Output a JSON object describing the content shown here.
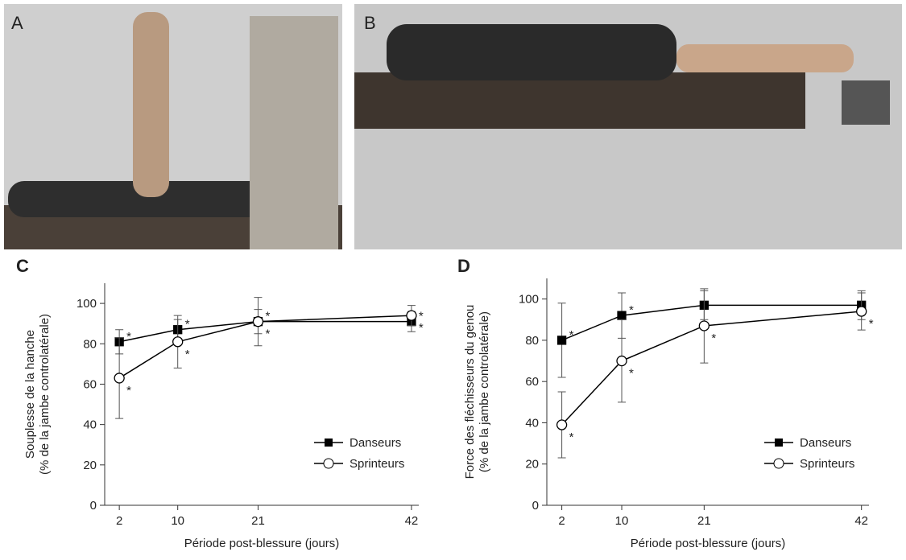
{
  "panel_labels": [
    "A",
    "B",
    "C",
    "D"
  ],
  "chart_data": [
    {
      "type": "line",
      "ylabel": [
        "Souplesse de la hanche",
        "(% de la jambe controlatérale)"
      ],
      "xlabel": "Période post-blessure (jours)",
      "x": [
        2,
        10,
        21,
        42
      ],
      "xlim": [
        0,
        43
      ],
      "xticks": [
        2,
        10,
        21,
        42
      ],
      "ylim": [
        0,
        110
      ],
      "yticks": [
        0,
        20,
        40,
        60,
        80,
        100
      ],
      "legend": "lower right",
      "series": [
        {
          "name": "Danseurs",
          "color": "#000000",
          "marker": "square",
          "values": [
            81,
            87,
            91,
            91
          ],
          "errors": [
            6,
            5,
            6,
            5
          ],
          "point_labels": [
            "*",
            "*",
            "*",
            "*"
          ]
        },
        {
          "name": "Sprinteurs",
          "color": "#000000",
          "marker": "circle",
          "values": [
            63,
            81,
            91,
            94
          ],
          "errors": [
            20,
            13,
            12,
            5
          ],
          "point_labels": [
            "*",
            "*",
            "*",
            "*"
          ]
        }
      ]
    },
    {
      "type": "line",
      "ylabel": [
        "Force des fléchisseurs du genou",
        "(% de la jambe controlatérale)"
      ],
      "xlabel": "Période post-blessure (jours)",
      "x": [
        2,
        10,
        21,
        42
      ],
      "xlim": [
        0,
        43
      ],
      "xticks": [
        2,
        10,
        21,
        42
      ],
      "ylim": [
        0,
        110
      ],
      "yticks": [
        0,
        20,
        40,
        60,
        80,
        100
      ],
      "legend": "lower right",
      "series": [
        {
          "name": "Danseurs",
          "color": "#000000",
          "marker": "square",
          "values": [
            80,
            92,
            97,
            97
          ],
          "errors": [
            18,
            11,
            7,
            7
          ],
          "point_labels": [
            "*",
            "*",
            "",
            ""
          ]
        },
        {
          "name": "Sprinteurs",
          "color": "#000000",
          "marker": "circle",
          "values": [
            39,
            70,
            87,
            94
          ],
          "errors": [
            16,
            20,
            18,
            9
          ],
          "point_labels": [
            "*",
            "*",
            "*",
            "*"
          ]
        }
      ]
    }
  ]
}
